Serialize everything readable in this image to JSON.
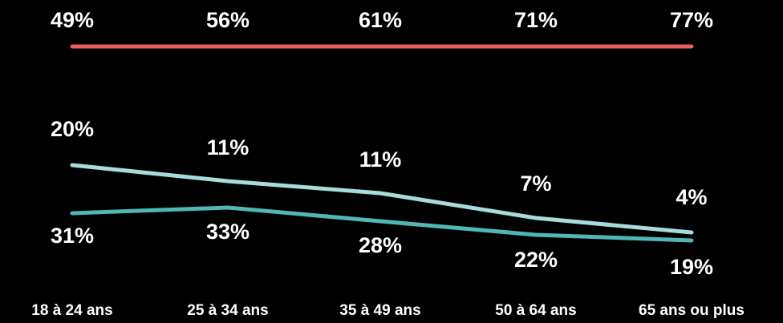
{
  "chart_data": {
    "type": "line",
    "categories": [
      "18 à 24 ans",
      "25 à 34 ans",
      "35 à 49 ans",
      "50 à 64 ans",
      "65 ans ou plus"
    ],
    "title": "",
    "xlabel": "",
    "ylabel": "",
    "grid": false,
    "legend": "none",
    "series": [
      {
        "color": "#E8605F",
        "values": [
          49,
          56,
          61,
          71,
          77
        ],
        "labels": [
          "49%",
          "56%",
          "61%",
          "71%",
          "77%"
        ]
      },
      {
        "color": "#A8DCDC",
        "values": [
          20,
          11,
          11,
          7,
          4
        ],
        "labels": [
          "20%",
          "11%",
          "11%",
          "7%",
          "4%"
        ]
      },
      {
        "color": "#4FB7B8",
        "values": [
          31,
          33,
          28,
          22,
          19
        ],
        "labels": [
          "31%",
          "33%",
          "28%",
          "22%",
          "19%"
        ]
      }
    ]
  }
}
